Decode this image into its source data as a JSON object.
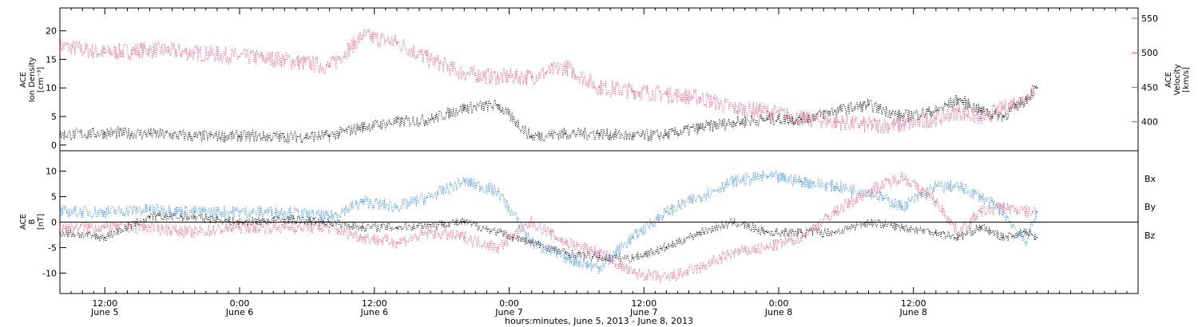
{
  "colors": {
    "black": "#000000",
    "pink": "#e8426e",
    "blue": "#1f7fe0"
  },
  "chart_data": [
    {
      "type": "scatter",
      "panel": "top",
      "ylabel_left": [
        "ACE",
        "Ion Density",
        "[cm⁻³]"
      ],
      "ylabel_right": [
        "ACE",
        "Velocity",
        "[km/s]"
      ],
      "ylim_left": [
        -1,
        24
      ],
      "ylim_right": [
        358,
        565
      ],
      "yticks_left": [
        "0",
        "5",
        "10",
        "15",
        "20"
      ],
      "yticks_right": [
        "400",
        "450",
        "500",
        "550"
      ],
      "series": [
        {
          "axis": "left",
          "color": "#000000",
          "hours": [
            0,
            4,
            8,
            12,
            16,
            20,
            24,
            27,
            30,
            33,
            36,
            39,
            42,
            45,
            48,
            51,
            54,
            57,
            60,
            63,
            66,
            69,
            72,
            75,
            78,
            80,
            82,
            84,
            86,
            87
          ],
          "values": [
            1.8,
            2.1,
            2,
            1.5,
            1.6,
            1.4,
            1.6,
            3.2,
            4,
            4.5,
            6.5,
            7,
            1.5,
            2,
            2,
            1.5,
            1.8,
            3,
            4,
            4.5,
            4.5,
            6,
            7,
            5,
            6,
            8,
            6,
            5,
            8,
            10
          ]
        },
        {
          "axis": "right",
          "color": "#e8426e",
          "hours": [
            0,
            4,
            8,
            12,
            16,
            20,
            24,
            27,
            30,
            33,
            36,
            39,
            42,
            45,
            48,
            51,
            54,
            57,
            60,
            63,
            66,
            69,
            72,
            75,
            78,
            80,
            82,
            84,
            86,
            87
          ],
          "values": [
            510,
            500,
            505,
            500,
            495,
            490,
            480,
            525,
            515,
            490,
            470,
            465,
            465,
            480,
            450,
            445,
            440,
            435,
            420,
            415,
            405,
            400,
            395,
            395,
            405,
            415,
            405,
            420,
            435,
            450
          ]
        }
      ]
    },
    {
      "type": "scatter",
      "panel": "bottom",
      "ylabel_left": [
        "ACE",
        "B",
        "[nT]"
      ],
      "ylim": [
        -14,
        14
      ],
      "yticks": [
        "-10",
        "-5",
        "0",
        "5",
        "10"
      ],
      "zero_line": true,
      "legend": [
        {
          "label": "Bx",
          "color": "#000000"
        },
        {
          "label": "By",
          "color": "#1f7fe0"
        },
        {
          "label": "Bz",
          "color": "#e8426e"
        }
      ],
      "series": [
        {
          "name": "Bx",
          "color": "#000000",
          "hours": [
            0,
            4,
            8,
            12,
            16,
            20,
            24,
            27,
            30,
            33,
            36,
            39,
            42,
            45,
            48,
            51,
            54,
            57,
            60,
            63,
            66,
            69,
            72,
            75,
            78,
            80,
            82,
            84,
            86,
            87
          ],
          "values": [
            -2,
            -3,
            1,
            1,
            0,
            0.5,
            0,
            -1,
            -1,
            -0.5,
            0,
            -2,
            -4,
            -6,
            -7,
            -7,
            -5,
            -2,
            0,
            -2,
            -2,
            -2,
            0,
            -1,
            -2,
            -3,
            -1,
            -3,
            -2,
            -3
          ]
        },
        {
          "name": "By",
          "color": "#1f7fe0",
          "hours": [
            0,
            4,
            8,
            12,
            16,
            20,
            24,
            27,
            30,
            33,
            36,
            39,
            42,
            45,
            48,
            51,
            54,
            57,
            60,
            63,
            66,
            69,
            72,
            75,
            78,
            80,
            82,
            84,
            86,
            87
          ],
          "values": [
            2,
            2,
            2.5,
            2,
            2,
            2,
            1,
            4,
            3,
            5,
            8,
            6,
            -4,
            -7,
            -9,
            -3,
            2,
            5,
            8,
            9,
            8,
            7,
            6,
            3,
            7,
            7,
            5,
            2,
            -4,
            2
          ]
        },
        {
          "name": "Bz",
          "color": "#e8426e",
          "hours": [
            0,
            4,
            8,
            12,
            16,
            20,
            24,
            27,
            30,
            33,
            36,
            39,
            42,
            45,
            48,
            51,
            54,
            57,
            60,
            63,
            66,
            69,
            72,
            75,
            78,
            80,
            82,
            84,
            86,
            87
          ],
          "values": [
            -1,
            -1,
            -1,
            -2,
            -1,
            -1,
            -1,
            -3,
            -4,
            -2,
            -3,
            -5,
            0,
            -4,
            -6,
            -10,
            -11,
            -9,
            -6,
            -5,
            -3,
            2,
            6,
            9,
            4,
            -2,
            2,
            3,
            2,
            2
          ]
        }
      ]
    }
  ],
  "x_axis": {
    "range_hours": [
      0,
      96
    ],
    "origin": "June 5, 2013 08:00",
    "ticks": [
      {
        "hours": 4,
        "time": "12:00",
        "date": "June 5"
      },
      {
        "hours": 16,
        "time": "0:00",
        "date": "June 6"
      },
      {
        "hours": 28,
        "time": "12:00",
        "date": "June 6"
      },
      {
        "hours": 40,
        "time": "0:00",
        "date": "June 7"
      },
      {
        "hours": 52,
        "time": "12:00",
        "date": "June 7"
      },
      {
        "hours": 64,
        "time": "0:00",
        "date": "June 8"
      },
      {
        "hours": 76,
        "time": "12:00",
        "date": "June 8"
      }
    ],
    "xlabel": "hours:minutes, June  5, 2013 - June  8, 2013"
  }
}
